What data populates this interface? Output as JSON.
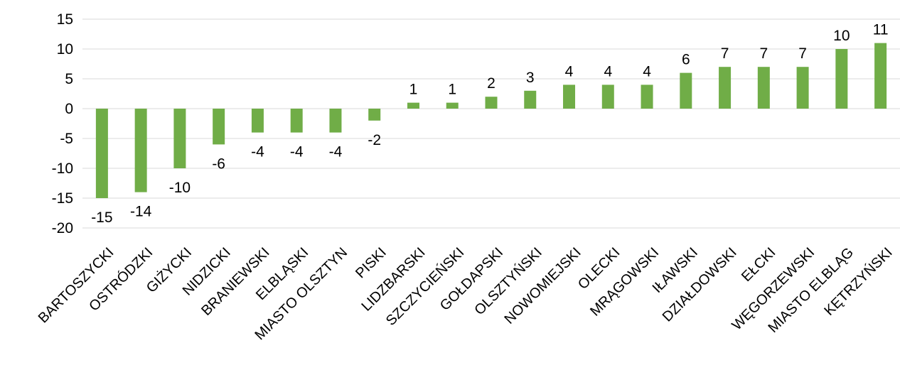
{
  "chart_data": {
    "type": "bar",
    "title": "",
    "xlabel": "",
    "ylabel": "",
    "ylim": [
      -20,
      15
    ],
    "yticks": [
      15,
      10,
      5,
      0,
      -5,
      -10,
      -15,
      -20
    ],
    "grid": true,
    "legend": "none",
    "bar_color": "#70ad47",
    "categories": [
      "BARTOSZYCKI",
      "OSTRÓDZKI",
      "GIŻYCKI",
      "NIDZICKI",
      "BRANIEWSKI",
      "ELBLĄSKI",
      "MIASTO OLSZTYN",
      "PISKI",
      "LIDZBARSKI",
      "SZCZYCIEŃSKI",
      "GOŁDAPSKI",
      "OLSZTYŃSKI",
      "NOWOMIEJSKI",
      "OLECKI",
      "MRĄGOWSKI",
      "IŁAWSKI",
      "DZIAŁDOWSKI",
      "EŁCKI",
      "WĘGORZEWSKI",
      "MIASTO ELBLĄG",
      "KĘTRZYŃSKI"
    ],
    "values": [
      -15,
      -14,
      -10,
      -6,
      -4,
      -4,
      -4,
      -2,
      1,
      1,
      2,
      3,
      4,
      4,
      4,
      6,
      7,
      7,
      7,
      10,
      11
    ],
    "data_labels": [
      "-15",
      "-14",
      "-10",
      "-6",
      "-4",
      "-4",
      "-4",
      "-2",
      "1",
      "1",
      "2",
      "3",
      "4",
      "4",
      "4",
      "6",
      "7",
      "7",
      "7",
      "10",
      "11"
    ]
  }
}
